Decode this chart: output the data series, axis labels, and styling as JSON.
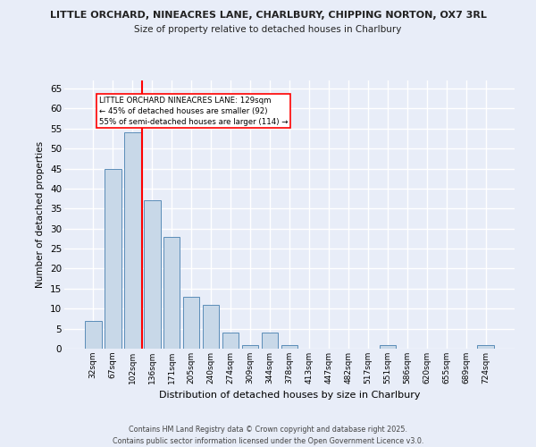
{
  "title_line1": "LITTLE ORCHARD, NINEACRES LANE, CHARLBURY, CHIPPING NORTON, OX7 3RL",
  "title_line2": "Size of property relative to detached houses in Charlbury",
  "xlabel": "Distribution of detached houses by size in Charlbury",
  "ylabel": "Number of detached properties",
  "categories": [
    "32sqm",
    "67sqm",
    "102sqm",
    "136sqm",
    "171sqm",
    "205sqm",
    "240sqm",
    "274sqm",
    "309sqm",
    "344sqm",
    "378sqm",
    "413sqm",
    "447sqm",
    "482sqm",
    "517sqm",
    "551sqm",
    "586sqm",
    "620sqm",
    "655sqm",
    "689sqm",
    "724sqm"
  ],
  "values": [
    7,
    45,
    54,
    37,
    28,
    13,
    11,
    4,
    1,
    4,
    1,
    0,
    0,
    0,
    0,
    1,
    0,
    0,
    0,
    0,
    1
  ],
  "bar_color": "#c8d8e8",
  "bar_edge_color": "#5b8db8",
  "red_line_index": 2.5,
  "annotation_box_text": "LITTLE ORCHARD NINEACRES LANE: 129sqm\n← 45% of detached houses are smaller (92)\n55% of semi-detached houses are larger (114) →",
  "ylim": [
    0,
    67
  ],
  "yticks": [
    0,
    5,
    10,
    15,
    20,
    25,
    30,
    35,
    40,
    45,
    50,
    55,
    60,
    65
  ],
  "background_color": "#e8edf8",
  "grid_color": "#ffffff",
  "footer_line1": "Contains HM Land Registry data © Crown copyright and database right 2025.",
  "footer_line2": "Contains public sector information licensed under the Open Government Licence v3.0."
}
